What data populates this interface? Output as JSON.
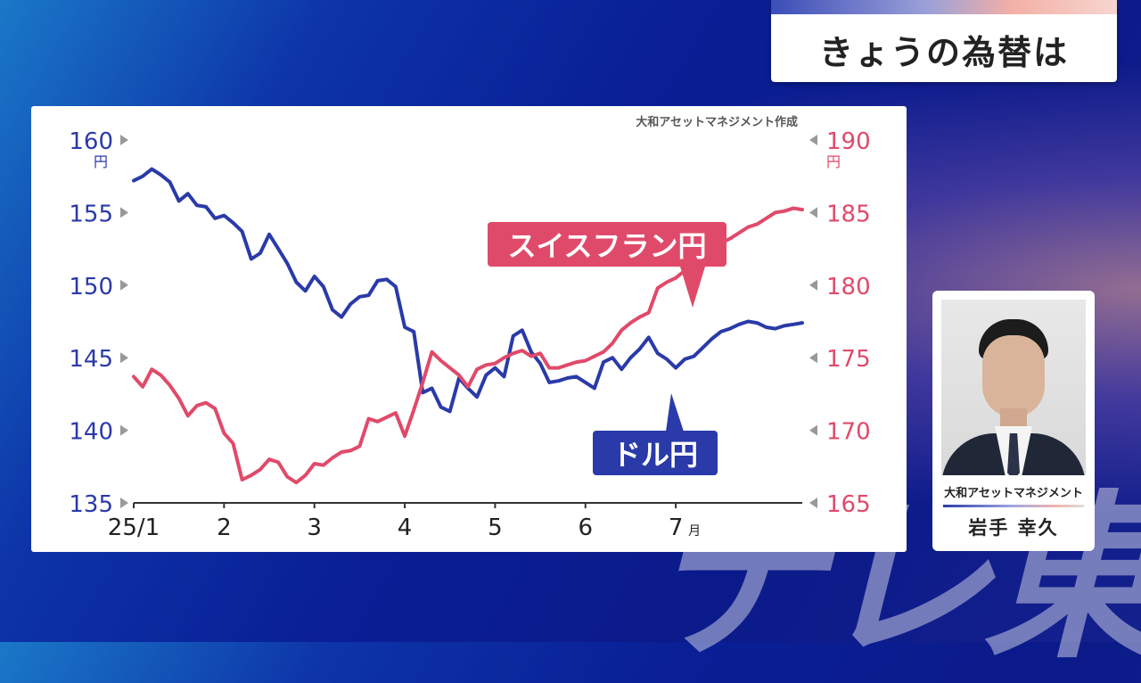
{
  "header": {
    "title": "きょうの為替は"
  },
  "watermark": "テレ東",
  "chart_data": {
    "type": "line",
    "source": "大和アセットマネジメント作成",
    "x_ticks": [
      "25/1",
      "2",
      "3",
      "4",
      "5",
      "6",
      "7"
    ],
    "x_tick_suffix": {
      "index": 6,
      "text": "月"
    },
    "left_axis": {
      "ticks": [
        160,
        155,
        150,
        145,
        140,
        135
      ],
      "unit": "円",
      "ylim": [
        135,
        160
      ],
      "color": "#2a3aa8"
    },
    "right_axis": {
      "ticks": [
        190,
        185,
        180,
        175,
        170,
        165
      ],
      "unit": "円",
      "ylim": [
        165,
        190
      ],
      "color": "#e04a6a"
    },
    "series": [
      {
        "name": "ドル円",
        "axis": "left",
        "color": "#2a3aa8",
        "x": [
          0.0,
          0.1,
          0.2,
          0.3,
          0.4,
          0.5,
          0.6,
          0.7,
          0.8,
          0.9,
          1.0,
          1.1,
          1.2,
          1.3,
          1.4,
          1.5,
          1.6,
          1.7,
          1.8,
          1.9,
          2.0,
          2.1,
          2.2,
          2.3,
          2.4,
          2.5,
          2.6,
          2.7,
          2.8,
          2.9,
          3.0,
          3.1,
          3.2,
          3.3,
          3.4,
          3.5,
          3.6,
          3.7,
          3.8,
          3.9,
          4.0,
          4.1,
          4.2,
          4.3,
          4.4,
          4.5,
          4.6,
          4.7,
          4.8,
          4.9,
          5.0,
          5.1,
          5.2,
          5.3,
          5.4,
          5.5,
          5.6,
          5.7,
          5.8,
          5.9,
          6.0,
          6.1,
          6.2,
          6.3,
          6.4,
          6.5,
          6.6,
          6.7,
          6.8,
          6.9,
          7.0,
          7.1,
          7.2,
          7.3,
          7.4
        ],
        "values": [
          157.2,
          157.5,
          158.0,
          157.6,
          157.1,
          155.8,
          156.3,
          155.5,
          155.4,
          154.6,
          154.8,
          154.3,
          153.7,
          151.8,
          152.2,
          153.5,
          152.5,
          151.5,
          150.2,
          149.6,
          150.6,
          149.9,
          148.3,
          147.8,
          148.7,
          149.2,
          149.3,
          150.3,
          150.4,
          149.9,
          147.1,
          146.8,
          142.6,
          142.9,
          141.6,
          141.3,
          143.6,
          142.9,
          142.3,
          143.8,
          144.3,
          143.7,
          146.5,
          146.9,
          145.4,
          144.6,
          143.3,
          143.4,
          143.6,
          143.7,
          143.3,
          142.9,
          144.7,
          145.0,
          144.2,
          145.0,
          145.6,
          146.4,
          145.3,
          144.9,
          144.3,
          144.9,
          145.1,
          145.7,
          146.3,
          146.8,
          147.0,
          147.3,
          147.5,
          147.4,
          147.1,
          147.0,
          147.2,
          147.3,
          147.4
        ],
        "label": "ドル円"
      },
      {
        "name": "スイスフラン円",
        "axis": "right",
        "color": "#e04a6a",
        "x": [
          0.0,
          0.1,
          0.2,
          0.3,
          0.4,
          0.5,
          0.6,
          0.7,
          0.8,
          0.9,
          1.0,
          1.1,
          1.2,
          1.3,
          1.4,
          1.5,
          1.6,
          1.7,
          1.8,
          1.9,
          2.0,
          2.1,
          2.2,
          2.3,
          2.4,
          2.5,
          2.6,
          2.7,
          2.8,
          2.9,
          3.0,
          3.1,
          3.2,
          3.3,
          3.4,
          3.5,
          3.6,
          3.7,
          3.8,
          3.9,
          4.0,
          4.1,
          4.2,
          4.3,
          4.4,
          4.5,
          4.6,
          4.7,
          4.8,
          4.9,
          5.0,
          5.1,
          5.2,
          5.3,
          5.4,
          5.5,
          5.6,
          5.7,
          5.8,
          5.9,
          6.0,
          6.1,
          6.2,
          6.3,
          6.4,
          6.5,
          6.6,
          6.7,
          6.8,
          6.9,
          7.0,
          7.1,
          7.2,
          7.3,
          7.4
        ],
        "values": [
          173.7,
          173.0,
          174.2,
          173.8,
          173.1,
          172.2,
          171.0,
          171.7,
          171.9,
          171.5,
          169.8,
          169.1,
          166.6,
          166.9,
          167.3,
          168.0,
          167.8,
          166.8,
          166.4,
          166.9,
          167.7,
          167.6,
          168.1,
          168.5,
          168.6,
          168.9,
          170.8,
          170.6,
          170.9,
          171.2,
          169.6,
          171.4,
          173.3,
          175.4,
          174.8,
          174.3,
          173.8,
          173.0,
          174.2,
          174.5,
          174.6,
          175.0,
          175.3,
          175.5,
          175.1,
          175.3,
          174.3,
          174.3,
          174.5,
          174.7,
          174.8,
          175.1,
          175.4,
          176.0,
          176.9,
          177.4,
          177.8,
          178.1,
          179.8,
          180.2,
          180.5,
          181.0,
          181.6,
          182.1,
          182.5,
          182.9,
          183.2,
          183.6,
          184.0,
          184.2,
          184.6,
          185.0,
          185.1,
          185.3,
          185.2
        ],
        "label": "スイスフラン円"
      }
    ]
  },
  "profile": {
    "org": "大和アセットマネジメント",
    "name": "岩手 幸久"
  }
}
